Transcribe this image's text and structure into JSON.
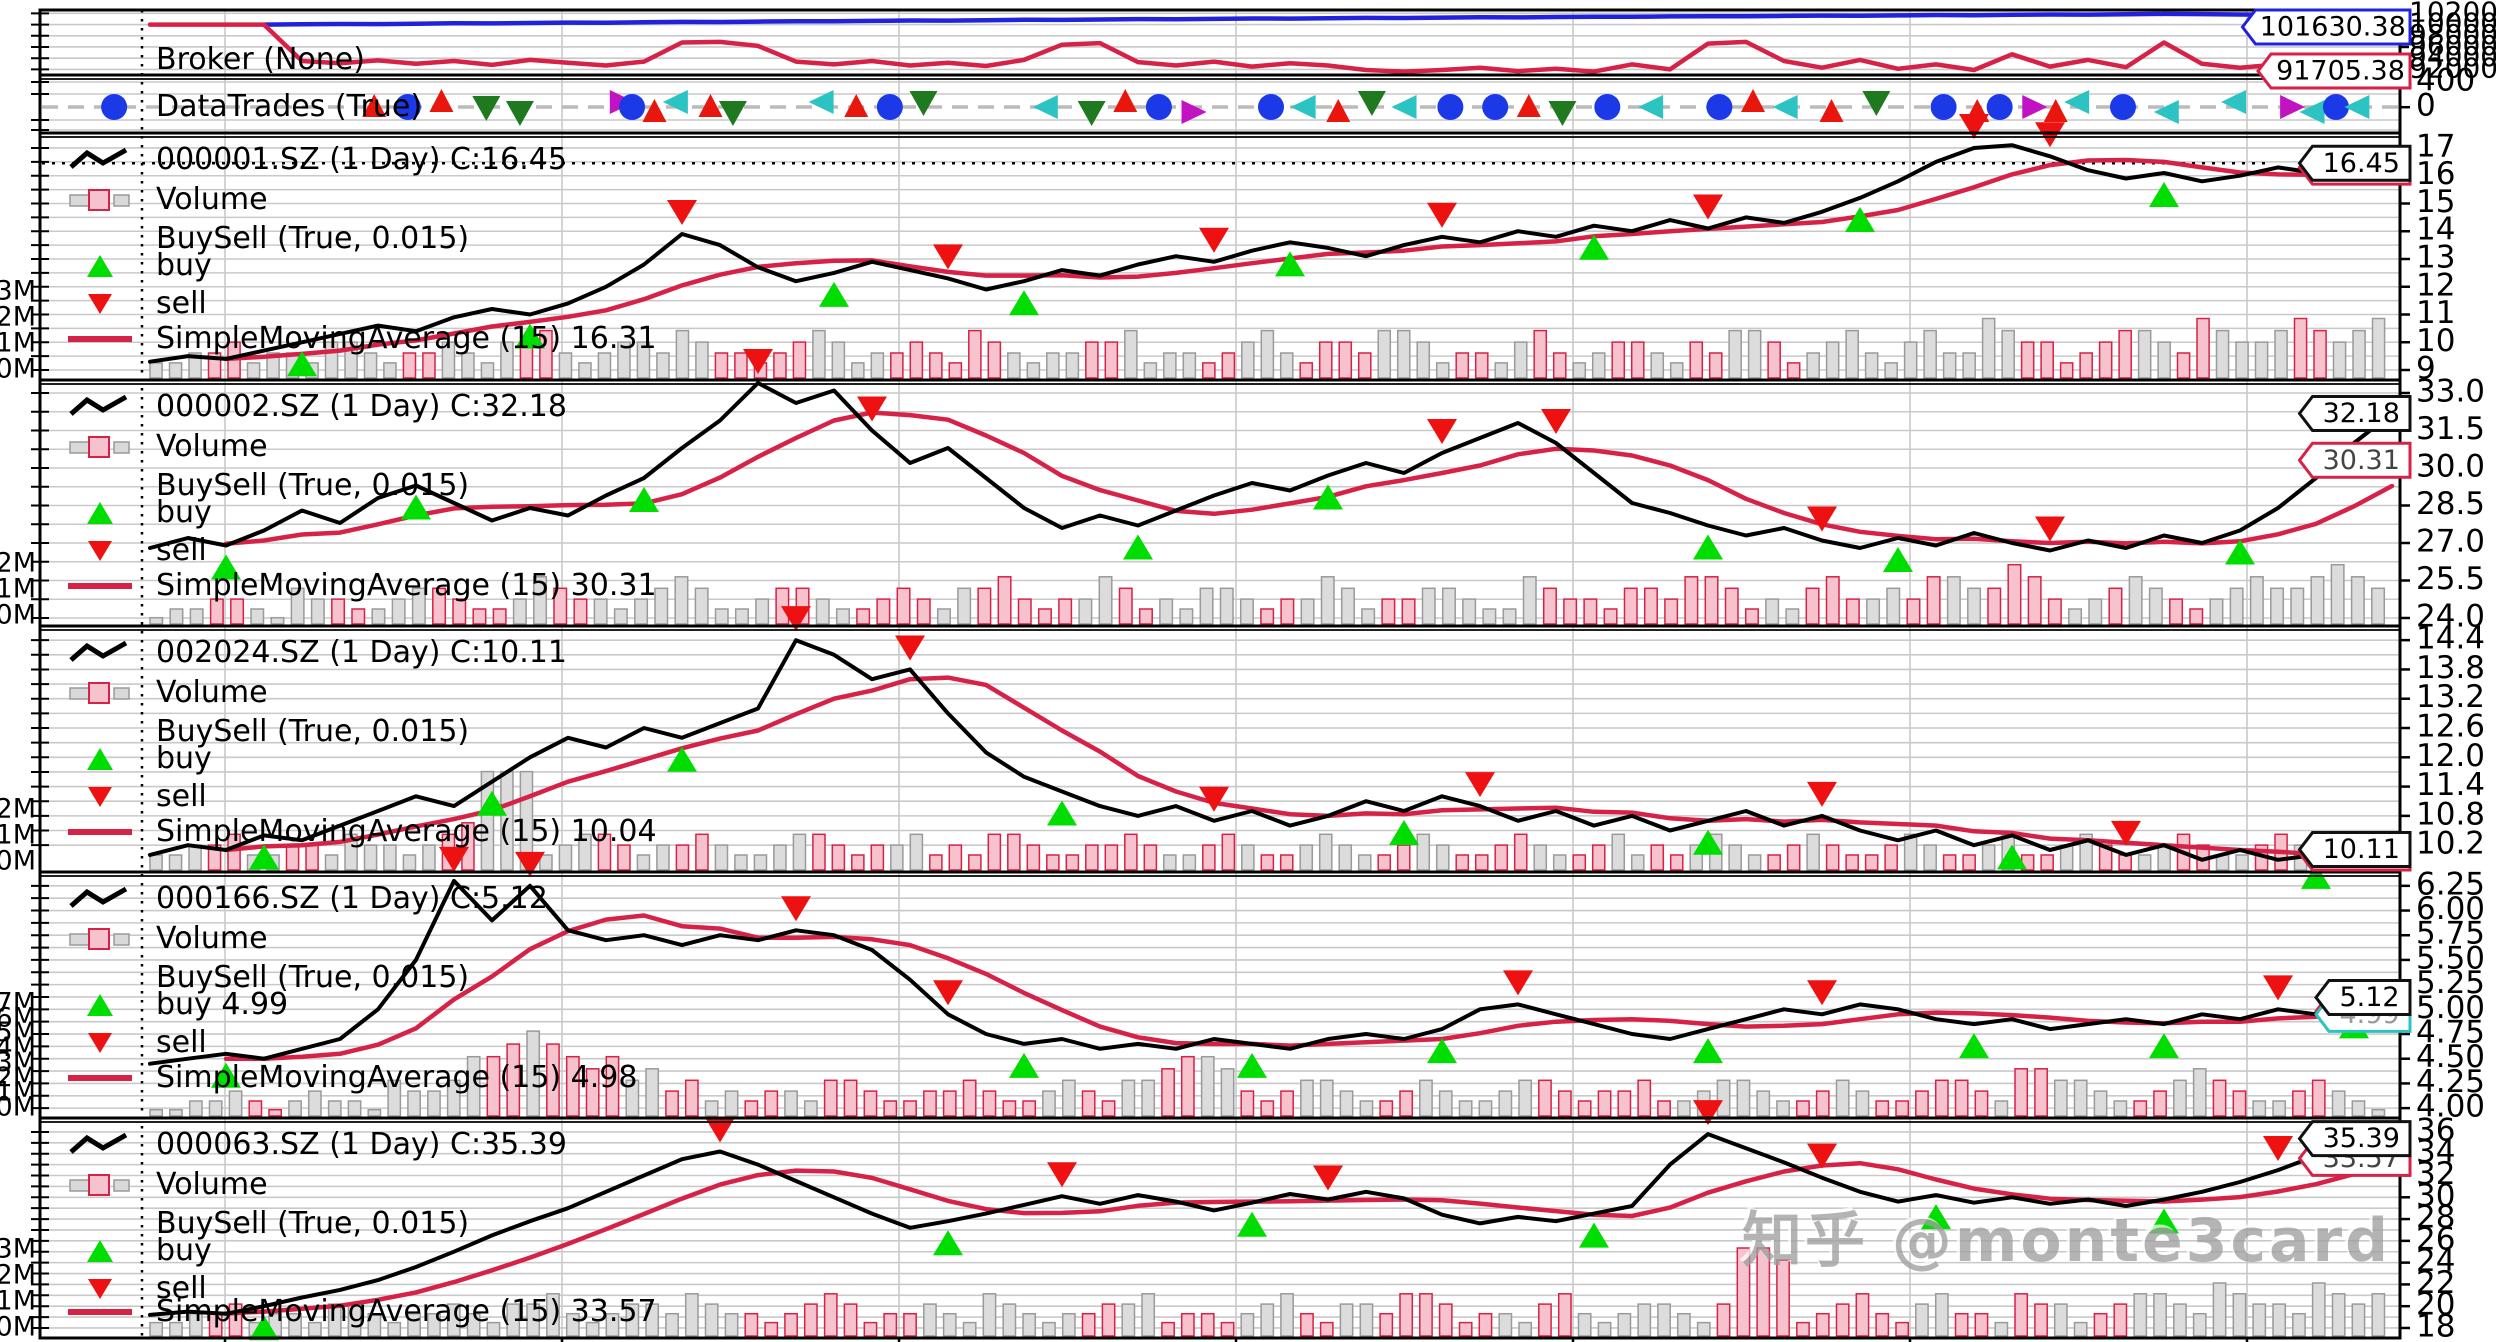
{
  "watermark": "知乎 @monte3card",
  "colors": {
    "price": "#000000",
    "sma": "#d62246",
    "buy": "#00dd00",
    "sell": "#ee1111",
    "value_line": "#2222dd",
    "cash_line": "#d62246",
    "trade_circle": "#1c39e8",
    "trade_up": "#e8160c",
    "trade_down": "#1f7a1f",
    "trade_left": "#2cc3c3",
    "trade_right": "#c213c2",
    "vol_up_fill": "#dcdcdc",
    "vol_up_edge": "#9a9a9a",
    "vol_down_fill": "#f5c2cd",
    "vol_down_edge": "#d62246",
    "grid": "#c9c9c9"
  },
  "chart_data": {
    "type": "line",
    "x_note": "trading days, evenly spaced samples; volume_levels are 0-9 encoded bar heights",
    "broker": {
      "label": "Broker (None)",
      "yticks": [
        "102000",
        "100000",
        "98000",
        "96000",
        "94000",
        "92000"
      ],
      "value_tag": {
        "text": "101630.38",
        "color": "#2222dd"
      },
      "cash_tag": {
        "text": "91705.38",
        "color": "#d62246"
      },
      "value_series": [
        null,
        null,
        null,
        100000,
        100050,
        100100,
        100080,
        100150,
        100220,
        100200,
        100280,
        100350,
        100320,
        100400,
        100480,
        100450,
        100530,
        100600,
        100580,
        100660,
        100730,
        100700,
        100780,
        100850,
        100830,
        100900,
        100970,
        100950,
        101020,
        101080,
        101060,
        101130,
        101190,
        101170,
        101240,
        101300,
        101280,
        101350,
        101400,
        101380,
        101450,
        101500,
        101480,
        101550,
        101600,
        101580,
        101640,
        101700,
        101680,
        101750,
        101800,
        101780,
        101850,
        101900,
        101860,
        101800,
        101740,
        101700,
        101660,
        101630.38
      ],
      "cash_series": [
        100000,
        100000,
        100000,
        100000,
        93500,
        93100,
        93600,
        93000,
        93500,
        92800,
        93700,
        93200,
        92700,
        93400,
        96800,
        96900,
        96200,
        93400,
        92900,
        93500,
        92700,
        93200,
        92600,
        93700,
        96400,
        96700,
        93300,
        92700,
        93400,
        92500,
        93100,
        92700,
        91900,
        91600,
        91900,
        92300,
        91700,
        92100,
        91600,
        92900,
        92000,
        96600,
        96900,
        93500,
        92300,
        93700,
        92100,
        92900,
        91900,
        94700,
        92500,
        93700,
        92400,
        96800,
        93000,
        92300,
        92900,
        92200,
        92600,
        91705.38
      ]
    },
    "trades": {
      "label": "DataTrades (True)",
      "yticks": [
        "400",
        "0"
      ],
      "markers": [
        [
          -0.016,
          "c"
        ],
        [
          0.1,
          "u"
        ],
        [
          0.115,
          "c"
        ],
        [
          0.13,
          "u"
        ],
        [
          0.15,
          "d"
        ],
        [
          0.165,
          "d"
        ],
        [
          0.21,
          "r"
        ],
        [
          0.215,
          "c"
        ],
        [
          0.225,
          "u"
        ],
        [
          0.235,
          "l"
        ],
        [
          0.25,
          "u"
        ],
        [
          0.26,
          "d"
        ],
        [
          0.3,
          "l"
        ],
        [
          0.315,
          "u"
        ],
        [
          0.33,
          "c"
        ],
        [
          0.345,
          "d"
        ],
        [
          0.4,
          "l"
        ],
        [
          0.42,
          "d"
        ],
        [
          0.435,
          "u"
        ],
        [
          0.45,
          "c"
        ],
        [
          0.465,
          "r"
        ],
        [
          0.5,
          "c"
        ],
        [
          0.515,
          "l"
        ],
        [
          0.53,
          "u"
        ],
        [
          0.545,
          "d"
        ],
        [
          0.56,
          "l"
        ],
        [
          0.58,
          "c"
        ],
        [
          0.6,
          "c"
        ],
        [
          0.615,
          "u"
        ],
        [
          0.63,
          "d"
        ],
        [
          0.65,
          "c"
        ],
        [
          0.67,
          "l"
        ],
        [
          0.7,
          "c"
        ],
        [
          0.715,
          "u"
        ],
        [
          0.73,
          "l"
        ],
        [
          0.75,
          "u"
        ],
        [
          0.77,
          "d"
        ],
        [
          0.8,
          "c"
        ],
        [
          0.815,
          "u"
        ],
        [
          0.825,
          "c"
        ],
        [
          0.84,
          "r"
        ],
        [
          0.85,
          "u"
        ],
        [
          0.86,
          "l"
        ],
        [
          0.88,
          "c"
        ],
        [
          0.9,
          "l"
        ],
        [
          0.93,
          "l"
        ],
        [
          0.955,
          "r"
        ],
        [
          0.965,
          "l"
        ],
        [
          0.975,
          "c"
        ],
        [
          0.985,
          "l"
        ]
      ]
    },
    "panels": [
      {
        "title": "000001.SZ (1 Day) C:16.45",
        "legend": {
          "volume": "Volume",
          "buysell": "BuySell (True, 0.015)",
          "buy": "buy",
          "sell": "sell",
          "sma": "SimpleMovingAverage (15) 16.31"
        },
        "yticks": [
          "17",
          "16",
          "15",
          "14",
          "13",
          "12",
          "11",
          "10",
          "9"
        ],
        "vol_ticks": [
          "3M",
          "2M",
          "1M",
          "0M"
        ],
        "close_tag": "16.45",
        "sma_tag": "16.31",
        "extra_tag": null,
        "close_dotted": true,
        "price": [
          9.3,
          9.5,
          9.4,
          9.7,
          10.0,
          10.3,
          10.6,
          10.4,
          10.9,
          11.2,
          11.0,
          11.4,
          12.0,
          12.8,
          13.9,
          13.5,
          12.7,
          12.2,
          12.5,
          12.9,
          12.6,
          12.3,
          11.9,
          12.2,
          12.6,
          12.4,
          12.8,
          13.1,
          12.9,
          13.3,
          13.6,
          13.4,
          13.1,
          13.5,
          13.8,
          13.6,
          14.0,
          13.8,
          14.2,
          14.0,
          14.4,
          14.1,
          14.5,
          14.3,
          14.7,
          15.2,
          15.8,
          16.5,
          17.0,
          17.1,
          16.7,
          16.2,
          15.9,
          16.1,
          15.8,
          16.0,
          16.3,
          16.1,
          16.3,
          16.45
        ],
        "buy_idx": [
          4,
          10,
          18,
          23,
          30,
          38,
          45,
          53
        ],
        "sell_idx": [
          14,
          21,
          28,
          34,
          41,
          48,
          50
        ],
        "volume_levels": "2233423324432334324453234435433234542334325432334452332345324435542332453234432435542345324533654423455436544565456"
      },
      {
        "title": "000002.SZ (1 Day) C:32.18",
        "legend": {
          "volume": "Volume",
          "buysell": "BuySell (True, 0.015)",
          "buy": "buy",
          "sell": "sell",
          "sma": "SimpleMovingAverage (15) 30.31"
        },
        "yticks": [
          "33.0",
          "31.5",
          "30.0",
          "28.5",
          "27.0",
          "25.5",
          "24.0"
        ],
        "vol_ticks": [
          "2M",
          "1M",
          "0M"
        ],
        "close_tag": "32.18",
        "sma_tag": "30.31",
        "extra_tag": null,
        "close_dotted": false,
        "price": [
          26.8,
          27.2,
          26.9,
          27.5,
          28.3,
          27.8,
          28.8,
          29.3,
          28.6,
          27.9,
          28.4,
          28.1,
          28.9,
          29.6,
          30.8,
          31.9,
          33.4,
          32.6,
          33.1,
          31.5,
          30.2,
          30.8,
          29.6,
          28.4,
          27.6,
          28.1,
          27.7,
          28.3,
          28.9,
          29.4,
          29.1,
          29.7,
          30.2,
          29.8,
          30.6,
          31.2,
          31.8,
          31.0,
          29.8,
          28.6,
          28.2,
          27.7,
          27.3,
          27.6,
          27.1,
          26.8,
          27.2,
          26.9,
          27.4,
          27.0,
          26.7,
          27.1,
          26.8,
          27.3,
          27.0,
          27.5,
          28.4,
          29.6,
          31.0,
          32.18
        ],
        "buy_idx": [
          2,
          7,
          13,
          26,
          31,
          41,
          46,
          55
        ],
        "sell_idx": [
          16,
          19,
          34,
          37,
          44,
          50
        ],
        "volume_levels": "122332143322344322354332345422344322343244532335423244323354233443225433244355423245334355446532345432345445654"
      },
      {
        "title": "002024.SZ (1 Day) C:10.11",
        "legend": {
          "volume": "Volume",
          "buysell": "BuySell (True, 0.015)",
          "buy": "buy",
          "sell": "sell",
          "sma": "SimpleMovingAverage (15) 10.04"
        },
        "yticks": [
          "14.4",
          "13.8",
          "13.2",
          "12.6",
          "12.0",
          "11.4",
          "10.8",
          "10.2"
        ],
        "vol_ticks": [
          "2M",
          "1M",
          "0M"
        ],
        "close_tag": "10.11",
        "sma_tag": "10.04",
        "extra_tag": null,
        "close_dotted": false,
        "price": [
          10.0,
          10.2,
          10.1,
          10.4,
          10.3,
          10.6,
          10.9,
          11.2,
          11.0,
          11.5,
          12.0,
          12.4,
          12.2,
          12.6,
          12.4,
          12.7,
          13.0,
          14.4,
          14.1,
          13.6,
          13.8,
          12.9,
          12.1,
          11.6,
          11.3,
          11.0,
          10.8,
          11.0,
          10.7,
          10.9,
          10.6,
          10.8,
          11.1,
          10.9,
          11.2,
          11.0,
          10.7,
          10.9,
          10.6,
          10.8,
          10.5,
          10.7,
          10.9,
          10.6,
          10.8,
          10.5,
          10.3,
          10.5,
          10.2,
          10.4,
          10.1,
          10.3,
          10.0,
          10.2,
          9.9,
          10.1,
          9.9,
          10.0,
          9.95,
          10.11
        ],
        "buy_idx": [
          3,
          9,
          14,
          24,
          33,
          41,
          49,
          57
        ],
        "sell_idx": [
          17,
          20,
          28,
          35,
          44,
          52
        ],
        "volume_levels": "2233422332433234599923443233432234432334232443223343223432234322343223432234232343223432234322342234322343223432234"
      },
      {
        "title": "000166.SZ (1 Day) C:5.12",
        "legend": {
          "volume": "Volume",
          "buysell": "BuySell (True, 0.015)",
          "buy": "buy 4.99",
          "sell": "sell",
          "sma": "SimpleMovingAverage (15) 4.98"
        },
        "yticks": [
          "6.25",
          "6.00",
          "5.75",
          "5.50",
          "5.25",
          "5.00",
          "4.75",
          "4.50",
          "4.25",
          "4.00"
        ],
        "vol_ticks": [
          "7M",
          "6M",
          "5M",
          "4M",
          "3M",
          "2M",
          "1M",
          "0M"
        ],
        "close_tag": "5.12",
        "sma_tag": "4.98",
        "extra_tag": {
          "text": "4.99",
          "color": "#2cc3c3"
        },
        "close_dotted": false,
        "price": [
          4.45,
          4.5,
          4.55,
          4.5,
          4.6,
          4.7,
          5.0,
          5.5,
          6.3,
          5.9,
          6.25,
          5.8,
          5.7,
          5.75,
          5.65,
          5.75,
          5.7,
          5.8,
          5.75,
          5.6,
          5.3,
          4.95,
          4.75,
          4.65,
          4.7,
          4.6,
          4.65,
          4.6,
          4.7,
          4.65,
          4.6,
          4.7,
          4.75,
          4.7,
          4.8,
          5.0,
          5.05,
          4.95,
          4.85,
          4.75,
          4.7,
          4.8,
          4.9,
          5.0,
          4.95,
          5.05,
          5.0,
          4.9,
          4.85,
          4.9,
          4.8,
          4.85,
          4.9,
          4.85,
          4.95,
          4.9,
          5.0,
          4.95,
          5.05,
          5.12
        ],
        "buy_idx": [
          2,
          23,
          29,
          34,
          41,
          48,
          53,
          58
        ],
        "sell_idx": [
          8,
          10,
          17,
          21,
          36,
          44,
          56
        ],
        "volume_levels": "11223212322143346678765645342323324432233432234324456653234432234322344323342234432234322344325544322345432234321"
      },
      {
        "title": "000063.SZ (1 Day) C:35.39",
        "legend": {
          "volume": "Volume",
          "buysell": "BuySell (True, 0.015)",
          "buy": "buy",
          "sell": "sell",
          "sma": "SimpleMovingAverage (15) 33.57"
        },
        "yticks": [
          "36",
          "34",
          "32",
          "30",
          "28",
          "26",
          "24",
          "22",
          "20",
          "18"
        ],
        "vol_ticks": [
          "3M",
          "2M",
          "1M",
          "0M"
        ],
        "close_tag": "35.39",
        "sma_tag": "33.57",
        "extra_tag": null,
        "close_dotted": false,
        "price": [
          19.2,
          19.5,
          19.3,
          20.0,
          20.8,
          21.5,
          22.4,
          23.6,
          25.0,
          26.5,
          27.8,
          29.0,
          30.5,
          32.0,
          33.5,
          34.2,
          33.0,
          31.5,
          30.0,
          28.5,
          27.2,
          27.8,
          28.5,
          29.3,
          30.1,
          29.4,
          30.2,
          29.6,
          28.8,
          29.5,
          30.3,
          29.8,
          30.5,
          29.9,
          28.4,
          27.6,
          28.2,
          27.8,
          28.5,
          29.2,
          33.0,
          35.8,
          34.5,
          33.2,
          31.8,
          30.5,
          29.6,
          30.2,
          29.5,
          30.0,
          29.4,
          29.8,
          29.2,
          29.8,
          30.5,
          31.4,
          32.5,
          33.8,
          34.8,
          35.39
        ],
        "buy_idx": [
          3,
          21,
          29,
          38,
          47,
          53
        ],
        "sell_idx": [
          15,
          24,
          31,
          41,
          44,
          56
        ],
        "volume_levels": "22334233244323343244532344354332345423343254323344523323453244355423324532344324998234532453325442345543654436545"
      }
    ]
  }
}
